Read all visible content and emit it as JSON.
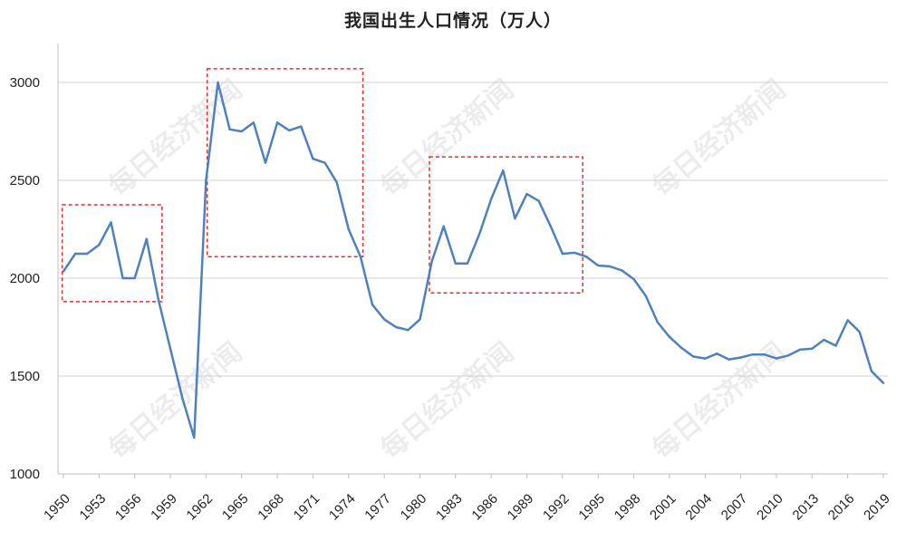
{
  "chart_data": {
    "type": "line",
    "title": "我国出生人口情况（万人）",
    "xlabel": "",
    "ylabel": "",
    "ylim": [
      1000,
      3200
    ],
    "yticks": [
      1000,
      1500,
      2000,
      2500,
      3000
    ],
    "xticks": [
      1950,
      1953,
      1956,
      1959,
      1962,
      1965,
      1968,
      1971,
      1974,
      1977,
      1980,
      1983,
      1986,
      1989,
      1992,
      1995,
      1998,
      2001,
      2004,
      2007,
      2010,
      2013,
      2016,
      2019
    ],
    "grid": "horizontal",
    "legend": "none",
    "series": [
      {
        "color": "#4f81bd",
        "x": [
          1950,
          1951,
          1952,
          1953,
          1954,
          1955,
          1956,
          1957,
          1958,
          1959,
          1960,
          1961,
          1962,
          1963,
          1964,
          1965,
          1966,
          1967,
          1968,
          1969,
          1970,
          1971,
          1972,
          1973,
          1974,
          1975,
          1976,
          1977,
          1978,
          1979,
          1980,
          1981,
          1982,
          1983,
          1984,
          1985,
          1986,
          1987,
          1988,
          1989,
          1990,
          1991,
          1992,
          1993,
          1994,
          1995,
          1996,
          1997,
          1998,
          1999,
          2000,
          2001,
          2002,
          2003,
          2004,
          2005,
          2006,
          2007,
          2008,
          2009,
          2010,
          2011,
          2012,
          2013,
          2014,
          2015,
          2016,
          2017,
          2018,
          2019
        ],
        "values": [
          2035,
          2125,
          2125,
          2170,
          2285,
          2000,
          2000,
          2200,
          1890,
          1640,
          1390,
          1185,
          2500,
          3000,
          2760,
          2750,
          2795,
          2590,
          2795,
          2755,
          2775,
          2610,
          2590,
          2490,
          2250,
          2110,
          1865,
          1790,
          1750,
          1735,
          1790,
          2085,
          2265,
          2075,
          2075,
          2225,
          2405,
          2550,
          2305,
          2430,
          2395,
          2265,
          2125,
          2130,
          2110,
          2065,
          2060,
          2040,
          1995,
          1910,
          1775,
          1700,
          1645,
          1600,
          1590,
          1615,
          1585,
          1595,
          1610,
          1610,
          1590,
          1605,
          1635,
          1640,
          1685,
          1655,
          1785,
          1725,
          1525,
          1465
        ]
      }
    ],
    "annotations": [
      {
        "type": "box",
        "color": "#e03030",
        "x_range": [
          1949.9,
          1958.3
        ],
        "y_range": [
          1880,
          2375
        ]
      },
      {
        "type": "box",
        "color": "#e03030",
        "x_range": [
          1962.1,
          1975.2
        ],
        "y_range": [
          2110,
          3070
        ]
      },
      {
        "type": "box",
        "color": "#e03030",
        "x_range": [
          1980.8,
          1993.7
        ],
        "y_range": [
          1925,
          2620
        ]
      }
    ],
    "watermark": "每日经济新闻"
  }
}
